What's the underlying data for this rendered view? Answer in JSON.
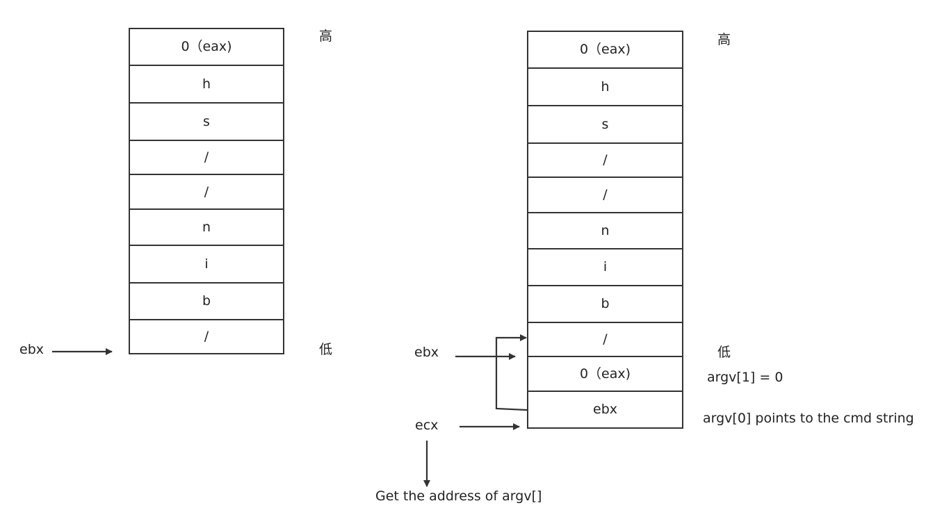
{
  "diagram": {
    "left_stack": {
      "cells": [
        "0（eax)",
        "h",
        "s",
        "/",
        "/",
        "n",
        "i",
        "b",
        "/"
      ],
      "high_label": "高",
      "low_label": "低",
      "pointer_label": "ebx"
    },
    "right_stack": {
      "cells": [
        "0（eax)",
        "h",
        "s",
        "/",
        "/",
        "n",
        "i",
        "b",
        "/",
        "0（eax)",
        "ebx"
      ],
      "high_label": "高",
      "low_label": "低",
      "ebx_label": "ebx",
      "ecx_label": "ecx",
      "argv1_note": "argv[1] = 0",
      "argv0_note": "argv[0] points to the cmd string",
      "ecx_result": "Get the address of argv[]"
    },
    "colors": {
      "line": "#333333",
      "text": "#222222",
      "background": "#ffffff"
    }
  }
}
